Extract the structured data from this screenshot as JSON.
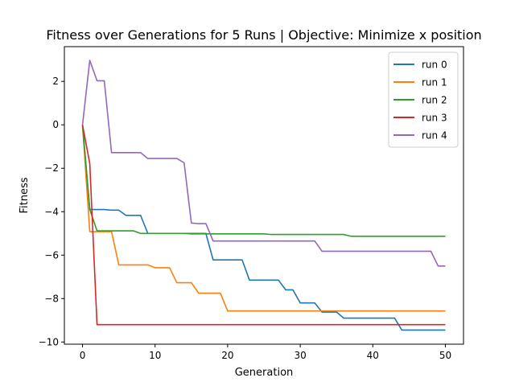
{
  "chart_data": {
    "type": "line",
    "title": "Fitness over Generations for 5 Runs | Objective: Minimize x position",
    "xlabel": "Generation",
    "ylabel": "Fitness",
    "xlim": [
      -2.5,
      52.5
    ],
    "ylim": [
      -10.1,
      3.6
    ],
    "xticks": [
      0,
      10,
      20,
      30,
      40,
      50
    ],
    "yticks": [
      -10,
      -8,
      -6,
      -4,
      -2,
      0,
      2
    ],
    "ytick_labels": [
      "−10",
      "−8",
      "−6",
      "−4",
      "−2",
      "0",
      "2"
    ],
    "grid": false,
    "legend_position": "top-right",
    "series": [
      {
        "name": "run 0",
        "color": "#1f77b4",
        "x": [
          0,
          1,
          2,
          3,
          4,
          5,
          6,
          7,
          8,
          9,
          10,
          11,
          12,
          13,
          14,
          15,
          16,
          17,
          18,
          19,
          20,
          21,
          22,
          23,
          24,
          25,
          26,
          27,
          28,
          29,
          30,
          31,
          32,
          33,
          34,
          35,
          36,
          37,
          38,
          39,
          40,
          41,
          42,
          43,
          44,
          45,
          46,
          47,
          48,
          49,
          50
        ],
        "y": [
          0,
          -3.9,
          -3.9,
          -3.9,
          -3.93,
          -3.93,
          -4.17,
          -4.17,
          -4.17,
          -5.0,
          -5.0,
          -5.0,
          -5.0,
          -5.0,
          -5.0,
          -5.0,
          -5.0,
          -5.0,
          -6.22,
          -6.22,
          -6.22,
          -6.22,
          -6.22,
          -7.15,
          -7.15,
          -7.15,
          -7.15,
          -7.15,
          -7.6,
          -7.6,
          -8.2,
          -8.2,
          -8.2,
          -8.62,
          -8.62,
          -8.62,
          -8.9,
          -8.9,
          -8.9,
          -8.9,
          -8.9,
          -8.9,
          -8.9,
          -8.9,
          -9.45,
          -9.45,
          -9.45,
          -9.45,
          -9.45,
          -9.45,
          -9.45
        ]
      },
      {
        "name": "run 1",
        "color": "#ff7f0e",
        "x": [
          0,
          1,
          2,
          3,
          4,
          5,
          6,
          7,
          8,
          9,
          10,
          11,
          12,
          13,
          14,
          15,
          16,
          17,
          18,
          19,
          20,
          21,
          22,
          23,
          24,
          25,
          26,
          27,
          28,
          29,
          30,
          31,
          32,
          33,
          34,
          35,
          36,
          37,
          38,
          39,
          40,
          41,
          42,
          43,
          44,
          45,
          46,
          47,
          48,
          49,
          50
        ],
        "y": [
          0,
          -4.92,
          -4.92,
          -4.92,
          -4.92,
          -6.45,
          -6.45,
          -6.45,
          -6.45,
          -6.45,
          -6.58,
          -6.58,
          -6.58,
          -7.27,
          -7.27,
          -7.27,
          -7.75,
          -7.75,
          -7.75,
          -7.75,
          -8.57,
          -8.57,
          -8.57,
          -8.57,
          -8.57,
          -8.57,
          -8.57,
          -8.57,
          -8.57,
          -8.57,
          -8.57,
          -8.57,
          -8.57,
          -8.57,
          -8.57,
          -8.57,
          -8.57,
          -8.57,
          -8.57,
          -8.57,
          -8.57,
          -8.57,
          -8.57,
          -8.57,
          -8.57,
          -8.57,
          -8.57,
          -8.57,
          -8.57,
          -8.57,
          -8.57
        ]
      },
      {
        "name": "run 2",
        "color": "#2ca02c",
        "x": [
          0,
          1,
          2,
          3,
          4,
          5,
          6,
          7,
          8,
          9,
          10,
          11,
          12,
          13,
          14,
          15,
          16,
          17,
          18,
          19,
          20,
          21,
          22,
          23,
          24,
          25,
          26,
          27,
          28,
          29,
          30,
          31,
          32,
          33,
          34,
          35,
          36,
          37,
          38,
          39,
          40,
          41,
          42,
          43,
          44,
          45,
          46,
          47,
          48,
          49,
          50
        ],
        "y": [
          0,
          -3.9,
          -4.88,
          -4.88,
          -4.88,
          -4.88,
          -4.88,
          -4.88,
          -5.0,
          -5.0,
          -5.0,
          -5.0,
          -5.0,
          -5.0,
          -5.0,
          -5.02,
          -5.02,
          -5.02,
          -5.02,
          -5.02,
          -5.02,
          -5.02,
          -5.02,
          -5.02,
          -5.02,
          -5.02,
          -5.05,
          -5.05,
          -5.05,
          -5.05,
          -5.05,
          -5.05,
          -5.05,
          -5.05,
          -5.05,
          -5.05,
          -5.05,
          -5.13,
          -5.13,
          -5.13,
          -5.13,
          -5.13,
          -5.13,
          -5.13,
          -5.13,
          -5.13,
          -5.13,
          -5.13,
          -5.13,
          -5.13,
          -5.13
        ]
      },
      {
        "name": "run 3",
        "color": "#d62728",
        "x": [
          0,
          1,
          2,
          3,
          4,
          5,
          6,
          7,
          8,
          9,
          10,
          11,
          12,
          13,
          14,
          15,
          16,
          17,
          18,
          19,
          20,
          21,
          22,
          23,
          24,
          25,
          26,
          27,
          28,
          29,
          30,
          31,
          32,
          33,
          34,
          35,
          36,
          37,
          38,
          39,
          40,
          41,
          42,
          43,
          44,
          45,
          46,
          47,
          48,
          49,
          50
        ],
        "y": [
          0,
          -1.78,
          -9.2,
          -9.2,
          -9.2,
          -9.2,
          -9.2,
          -9.2,
          -9.2,
          -9.2,
          -9.2,
          -9.2,
          -9.2,
          -9.2,
          -9.2,
          -9.2,
          -9.2,
          -9.2,
          -9.2,
          -9.2,
          -9.2,
          -9.2,
          -9.2,
          -9.2,
          -9.2,
          -9.2,
          -9.2,
          -9.2,
          -9.2,
          -9.2,
          -9.2,
          -9.2,
          -9.2,
          -9.2,
          -9.2,
          -9.2,
          -9.2,
          -9.2,
          -9.2,
          -9.2,
          -9.2,
          -9.2,
          -9.2,
          -9.2,
          -9.2,
          -9.2,
          -9.2,
          -9.2,
          -9.2,
          -9.2,
          -9.2
        ]
      },
      {
        "name": "run 4",
        "color": "#9467bd",
        "x": [
          0,
          1,
          2,
          3,
          4,
          5,
          6,
          7,
          8,
          9,
          10,
          11,
          12,
          13,
          14,
          15,
          16,
          17,
          18,
          19,
          20,
          21,
          22,
          23,
          24,
          25,
          26,
          27,
          28,
          29,
          30,
          31,
          32,
          33,
          34,
          35,
          36,
          37,
          38,
          39,
          40,
          41,
          42,
          43,
          44,
          45,
          46,
          47,
          48,
          49,
          50
        ],
        "y": [
          0,
          2.97,
          2.03,
          2.03,
          -1.28,
          -1.28,
          -1.28,
          -1.28,
          -1.28,
          -1.55,
          -1.55,
          -1.55,
          -1.55,
          -1.55,
          -1.75,
          -4.52,
          -4.55,
          -4.55,
          -5.35,
          -5.35,
          -5.35,
          -5.35,
          -5.35,
          -5.35,
          -5.35,
          -5.35,
          -5.35,
          -5.35,
          -5.35,
          -5.35,
          -5.35,
          -5.35,
          -5.35,
          -5.82,
          -5.82,
          -5.82,
          -5.82,
          -5.82,
          -5.82,
          -5.82,
          -5.82,
          -5.82,
          -5.82,
          -5.82,
          -5.82,
          -5.82,
          -5.82,
          -5.82,
          -5.82,
          -6.5,
          -6.5
        ]
      }
    ]
  }
}
